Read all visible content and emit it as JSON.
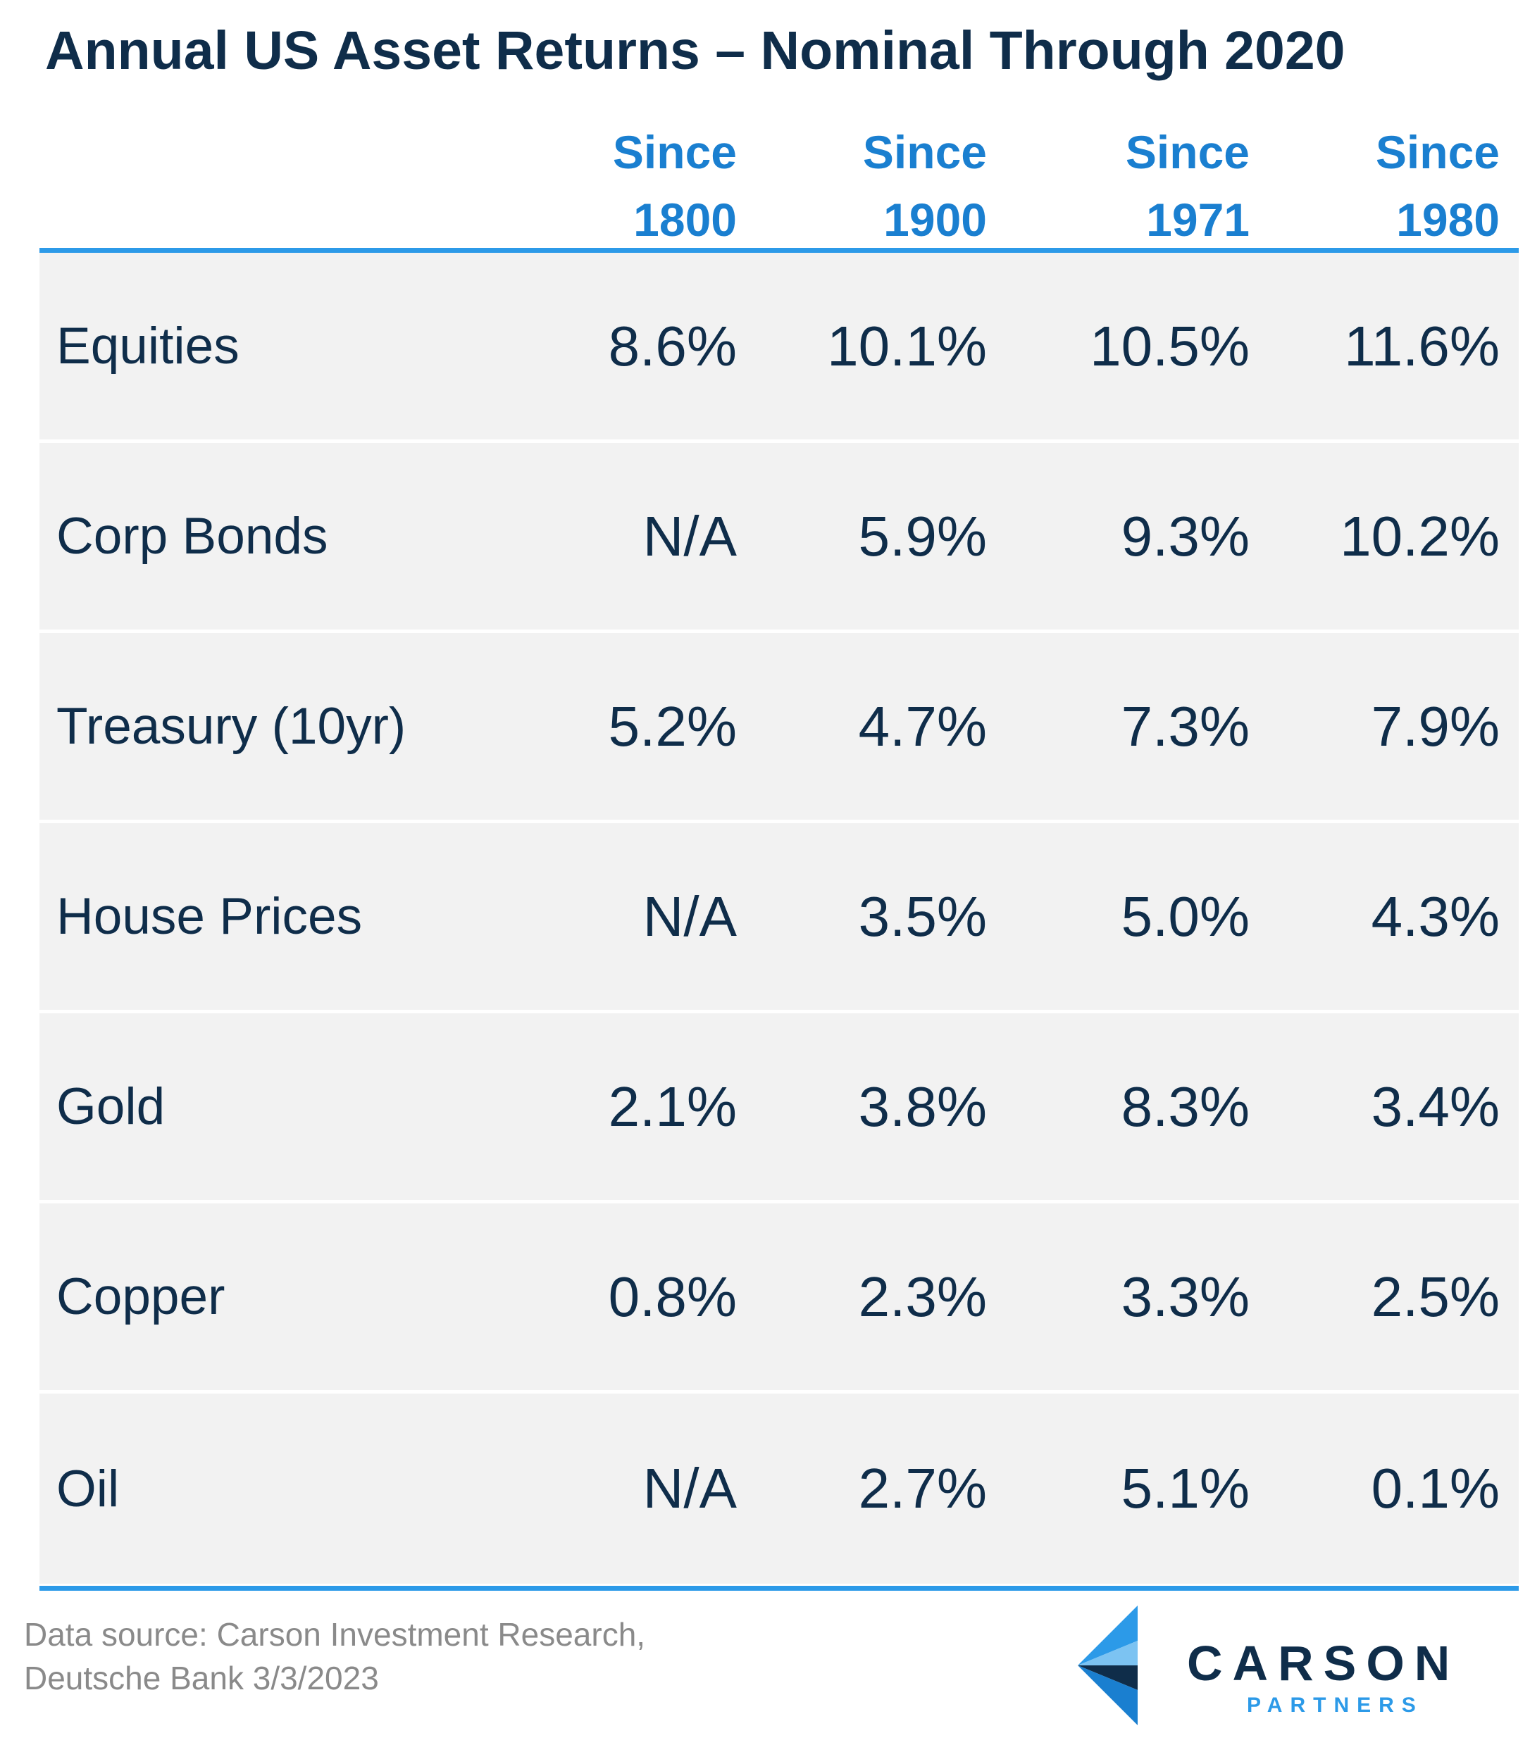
{
  "chart_data": {
    "type": "table",
    "title": "Annual US Asset Returns – Nominal Through 2020",
    "columns": [
      {
        "line1": "Since",
        "line2": "1800"
      },
      {
        "line1": "Since",
        "line2": "1900"
      },
      {
        "line1": "Since",
        "line2": "1971"
      },
      {
        "line1": "Since",
        "line2": "1980"
      }
    ],
    "rows": [
      {
        "label": "Equities",
        "values": [
          "8.6%",
          "10.1%",
          "10.5%",
          "11.6%"
        ]
      },
      {
        "label": "Corp Bonds",
        "values": [
          "N/A",
          "5.9%",
          "9.3%",
          "10.2%"
        ]
      },
      {
        "label": "Treasury (10yr)",
        "values": [
          "5.2%",
          "4.7%",
          "7.3%",
          "7.9%"
        ]
      },
      {
        "label": "House Prices",
        "values": [
          "N/A",
          "3.5%",
          "5.0%",
          "4.3%"
        ]
      },
      {
        "label": "Gold",
        "values": [
          "2.1%",
          "3.8%",
          "8.3%",
          "3.4%"
        ]
      },
      {
        "label": "Copper",
        "values": [
          "0.8%",
          "2.3%",
          "3.3%",
          "2.5%"
        ]
      },
      {
        "label": "Oil",
        "values": [
          "N/A",
          "2.7%",
          "5.1%",
          "0.1%"
        ]
      }
    ]
  },
  "source": {
    "line1": "Data source: Carson Investment Research,",
    "line2": "Deutsche Bank  3/3/2023"
  },
  "logo": {
    "name": "CARSON",
    "sub": "PARTNERS"
  },
  "colors": {
    "title": "#0f2d4a",
    "header": "#1a7fd0",
    "rule": "#2c9ae8",
    "row_bg": "#f2f2f2",
    "source_text": "#8a8a8a"
  }
}
